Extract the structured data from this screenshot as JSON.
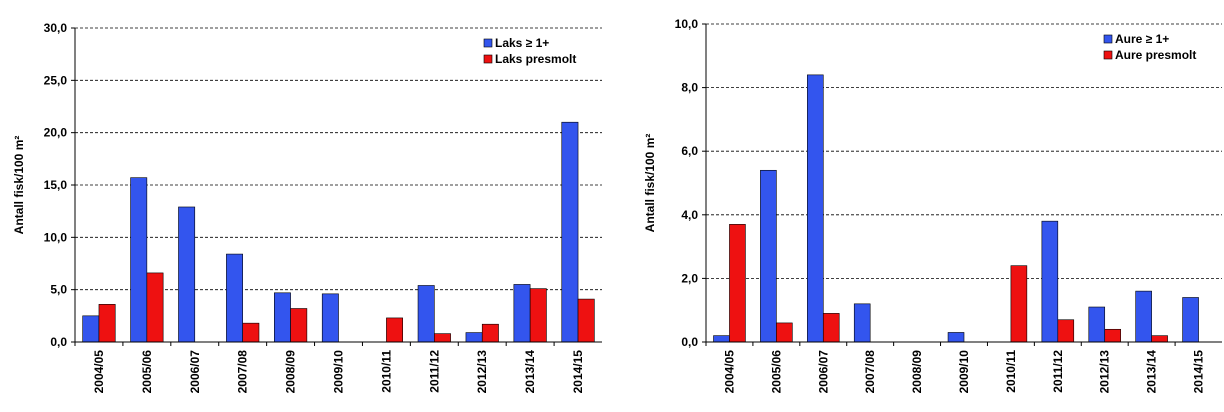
{
  "chart_data": [
    {
      "type": "bar",
      "y_label": "Antall fisk/100 m²",
      "categories": [
        "2004/05",
        "2005/06",
        "2006/07",
        "2007/08",
        "2008/09",
        "2009/10",
        "2010/11",
        "2011/12",
        "2012/13",
        "2013/14",
        "2014/15"
      ],
      "series": [
        {
          "name": "Laks ≥ 1+",
          "color": "#3355ee",
          "values": [
            2.5,
            15.7,
            12.9,
            8.4,
            4.7,
            4.6,
            null,
            5.4,
            0.9,
            5.5,
            21.0
          ]
        },
        {
          "name": "Laks presmolt",
          "color": "#ee1111",
          "values": [
            3.6,
            6.6,
            null,
            1.8,
            3.2,
            null,
            2.3,
            0.8,
            1.7,
            5.1,
            4.1
          ]
        }
      ],
      "ylim": [
        0,
        30
      ],
      "yticks": [
        {
          "value": 0,
          "label": "0,0"
        },
        {
          "value": 5,
          "label": "5,0"
        },
        {
          "value": 10,
          "label": "10,0"
        },
        {
          "value": 15,
          "label": "15,0"
        },
        {
          "value": 20,
          "label": "20,0"
        },
        {
          "value": 25,
          "label": "25,0"
        },
        {
          "value": 30,
          "label": "30,0"
        }
      ],
      "grid": true,
      "legend": "top-right"
    },
    {
      "type": "bar",
      "y_label": "Antall fisk/100 m²",
      "categories": [
        "2004/05",
        "2005/06",
        "2006/07",
        "2007/08",
        "2008/09",
        "2009/10",
        "2010/11",
        "2011/12",
        "2012/13",
        "2013/14",
        "2014/15"
      ],
      "series": [
        {
          "name": "Aure ≥ 1+",
          "color": "#3355ee",
          "values": [
            0.2,
            5.4,
            8.4,
            1.2,
            null,
            0.3,
            null,
            3.8,
            1.1,
            1.6,
            1.4
          ]
        },
        {
          "name": "Aure presmolt",
          "color": "#ee1111",
          "values": [
            3.7,
            0.6,
            0.9,
            null,
            null,
            null,
            2.4,
            0.7,
            0.4,
            0.2,
            null
          ]
        }
      ],
      "ylim": [
        0,
        10
      ],
      "yticks": [
        {
          "value": 0,
          "label": "0,0"
        },
        {
          "value": 2,
          "label": "2,0"
        },
        {
          "value": 4,
          "label": "4,0"
        },
        {
          "value": 6,
          "label": "6,0"
        },
        {
          "value": 8,
          "label": "8,0"
        },
        {
          "value": 10,
          "label": "10,0"
        }
      ],
      "grid": true,
      "legend": "top-right"
    }
  ]
}
